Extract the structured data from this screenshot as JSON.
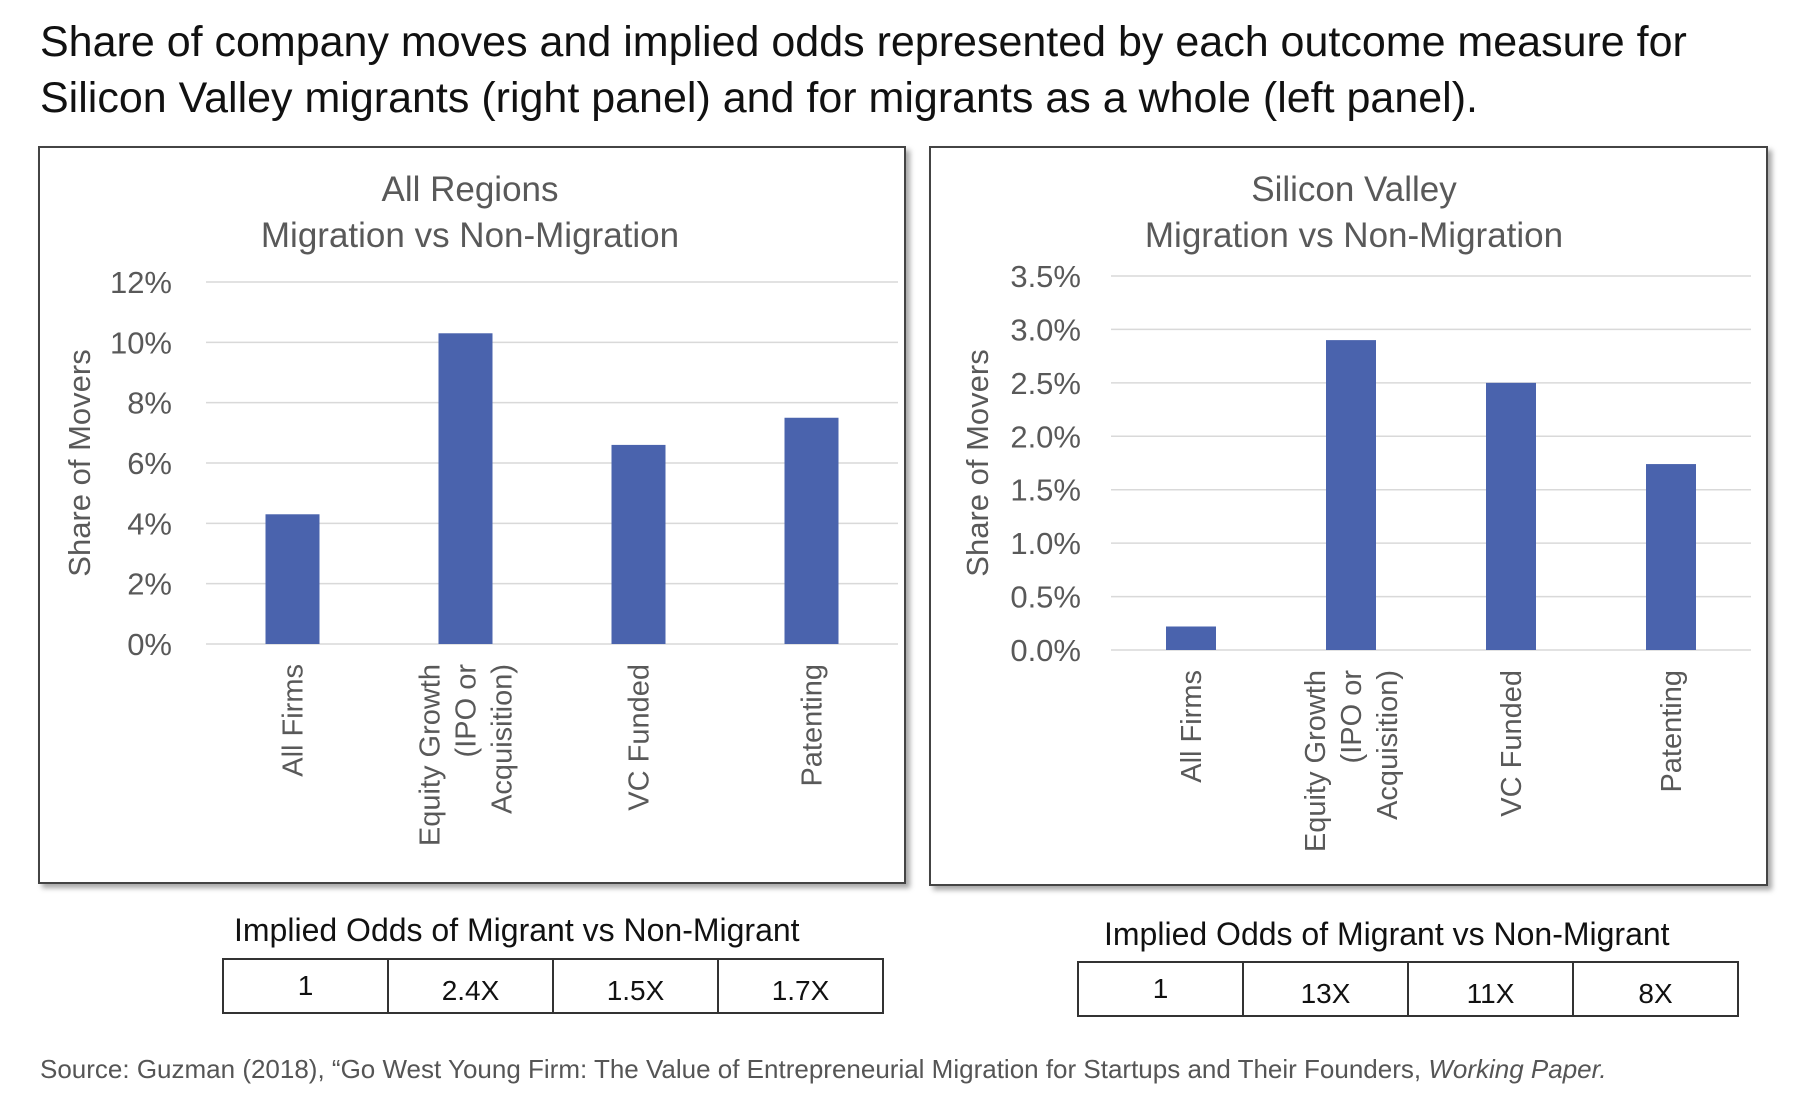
{
  "headline": "Share of company moves and implied odds represented by each outcome measure for Silicon Valley migrants (right panel) and for migrants as a whole (left panel).",
  "colors": {
    "bar": "#4a63ad",
    "grid": "#d9d9d9",
    "axis_text": "#595959"
  },
  "chart_data": [
    {
      "type": "bar",
      "title_lines": [
        "All Regions",
        "Migration vs Non-Migration"
      ],
      "ylabel": "Share of Movers",
      "categories": [
        "All Firms",
        "Equity Growth (IPO or Acquisition)",
        "VC Funded",
        "Patenting"
      ],
      "category_lines": [
        [
          "All Firms"
        ],
        [
          "Equity Growth",
          "(IPO or",
          "Acquisition)"
        ],
        [
          "VC Funded"
        ],
        [
          "Patenting"
        ]
      ],
      "values": [
        4.3,
        10.3,
        6.6,
        7.5
      ],
      "ylim": [
        0,
        12
      ],
      "yticks": [
        0,
        2,
        4,
        6,
        8,
        10,
        12
      ],
      "ytick_labels": [
        "0%",
        "2%",
        "4%",
        "6%",
        "8%",
        "10%",
        "12%"
      ],
      "grid": true,
      "legend": "none"
    },
    {
      "type": "bar",
      "title_lines": [
        "Silicon Valley",
        "Migration vs Non-Migration"
      ],
      "ylabel": "Share of Movers",
      "categories": [
        "All Firms",
        "Equity Growth (IPO or Acquisition)",
        "VC Funded",
        "Patenting"
      ],
      "category_lines": [
        [
          "All Firms"
        ],
        [
          "Equity Growth",
          "(IPO or",
          "Acquisition)"
        ],
        [
          "VC Funded"
        ],
        [
          "Patenting"
        ]
      ],
      "values": [
        0.22,
        2.9,
        2.5,
        1.74
      ],
      "ylim": [
        0,
        3.5
      ],
      "yticks": [
        0,
        0.5,
        1.0,
        1.5,
        2.0,
        2.5,
        3.0,
        3.5
      ],
      "ytick_labels": [
        "0.0%",
        "0.5%",
        "1.0%",
        "1.5%",
        "2.0%",
        "2.5%",
        "3.0%",
        "3.5%"
      ],
      "grid": true,
      "legend": "none"
    }
  ],
  "odds_left": {
    "caption": "Implied Odds of Migrant vs Non-Migrant",
    "cells": [
      "1",
      "2.4X",
      "1.5X",
      "1.7X"
    ]
  },
  "odds_right": {
    "caption": "Implied Odds of Migrant vs Non-Migrant",
    "cells": [
      "1",
      "13X",
      "11X",
      "8X"
    ]
  },
  "source": {
    "prefix": "Source: Guzman (2018), “Go West Young Firm: The Value of Entrepreneurial Migration for Startups and Their Founders, ",
    "italic": "Working Paper."
  }
}
